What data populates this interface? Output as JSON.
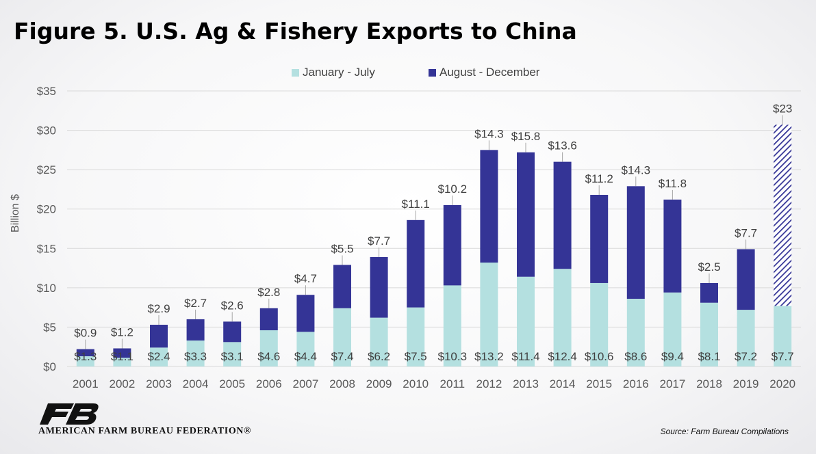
{
  "title": "Figure 5. U.S. Ag & Fishery Exports to China",
  "source": "Source: Farm Bureau Compilations",
  "logo": {
    "text": "AMERICAN FARM BUREAU FEDERATION®",
    "icon": "fb-logo-icon"
  },
  "colors": {
    "jan_jul": "#b4e0e0",
    "aug_dec": "#343496",
    "hatch": "#343496",
    "grid": "#d9d9d9",
    "text": "#595959"
  },
  "chart_data": {
    "type": "bar",
    "stacked": true,
    "title": "Figure 5. U.S. Ag & Fishery Exports to China",
    "ylabel": "Billion $",
    "xlabel": "",
    "ylim": [
      0,
      35
    ],
    "yticks": [
      0,
      5,
      10,
      15,
      20,
      25,
      30,
      35
    ],
    "ytick_labels": [
      "$0",
      "$5",
      "$10",
      "$15",
      "$20",
      "$25",
      "$30",
      "$35"
    ],
    "grid": true,
    "legend": {
      "position": "top-center"
    },
    "categories": [
      "2001",
      "2002",
      "2003",
      "2004",
      "2005",
      "2006",
      "2007",
      "2008",
      "2009",
      "2010",
      "2011",
      "2012",
      "2013",
      "2014",
      "2015",
      "2016",
      "2017",
      "2018",
      "2019",
      "2020"
    ],
    "series": [
      {
        "name": "January - July",
        "values": [
          1.3,
          1.1,
          2.4,
          3.3,
          3.1,
          4.6,
          4.4,
          7.4,
          6.2,
          7.5,
          10.3,
          13.2,
          11.4,
          12.4,
          10.6,
          8.6,
          9.4,
          8.1,
          7.2,
          7.7
        ],
        "labels": [
          "$1.3",
          "$1.1",
          "$2.4",
          "$3.3",
          "$3.1",
          "$4.6",
          "$4.4",
          "$7.4",
          "$6.2",
          "$7.5",
          "$10.3",
          "$13.2",
          "$11.4",
          "$12.4",
          "$10.6",
          "$8.6",
          "$9.4",
          "$8.1",
          "$7.2",
          "$7.7"
        ]
      },
      {
        "name": "August - December",
        "values": [
          0.9,
          1.2,
          2.9,
          2.7,
          2.6,
          2.8,
          4.7,
          5.5,
          7.7,
          11.1,
          10.2,
          14.3,
          15.8,
          13.6,
          11.2,
          14.3,
          11.8,
          2.5,
          7.7,
          23
        ],
        "labels": [
          "$0.9",
          "$1.2",
          "$2.9",
          "$2.7",
          "$2.6",
          "$2.8",
          "$4.7",
          "$5.5",
          "$7.7",
          "$11.1",
          "$10.2",
          "$14.3",
          "$15.8",
          "$13.6",
          "$11.2",
          "$14.3",
          "$11.8",
          "$2.5",
          "$7.7",
          "$23"
        ],
        "hatched_categories": [
          "2020"
        ]
      }
    ]
  }
}
